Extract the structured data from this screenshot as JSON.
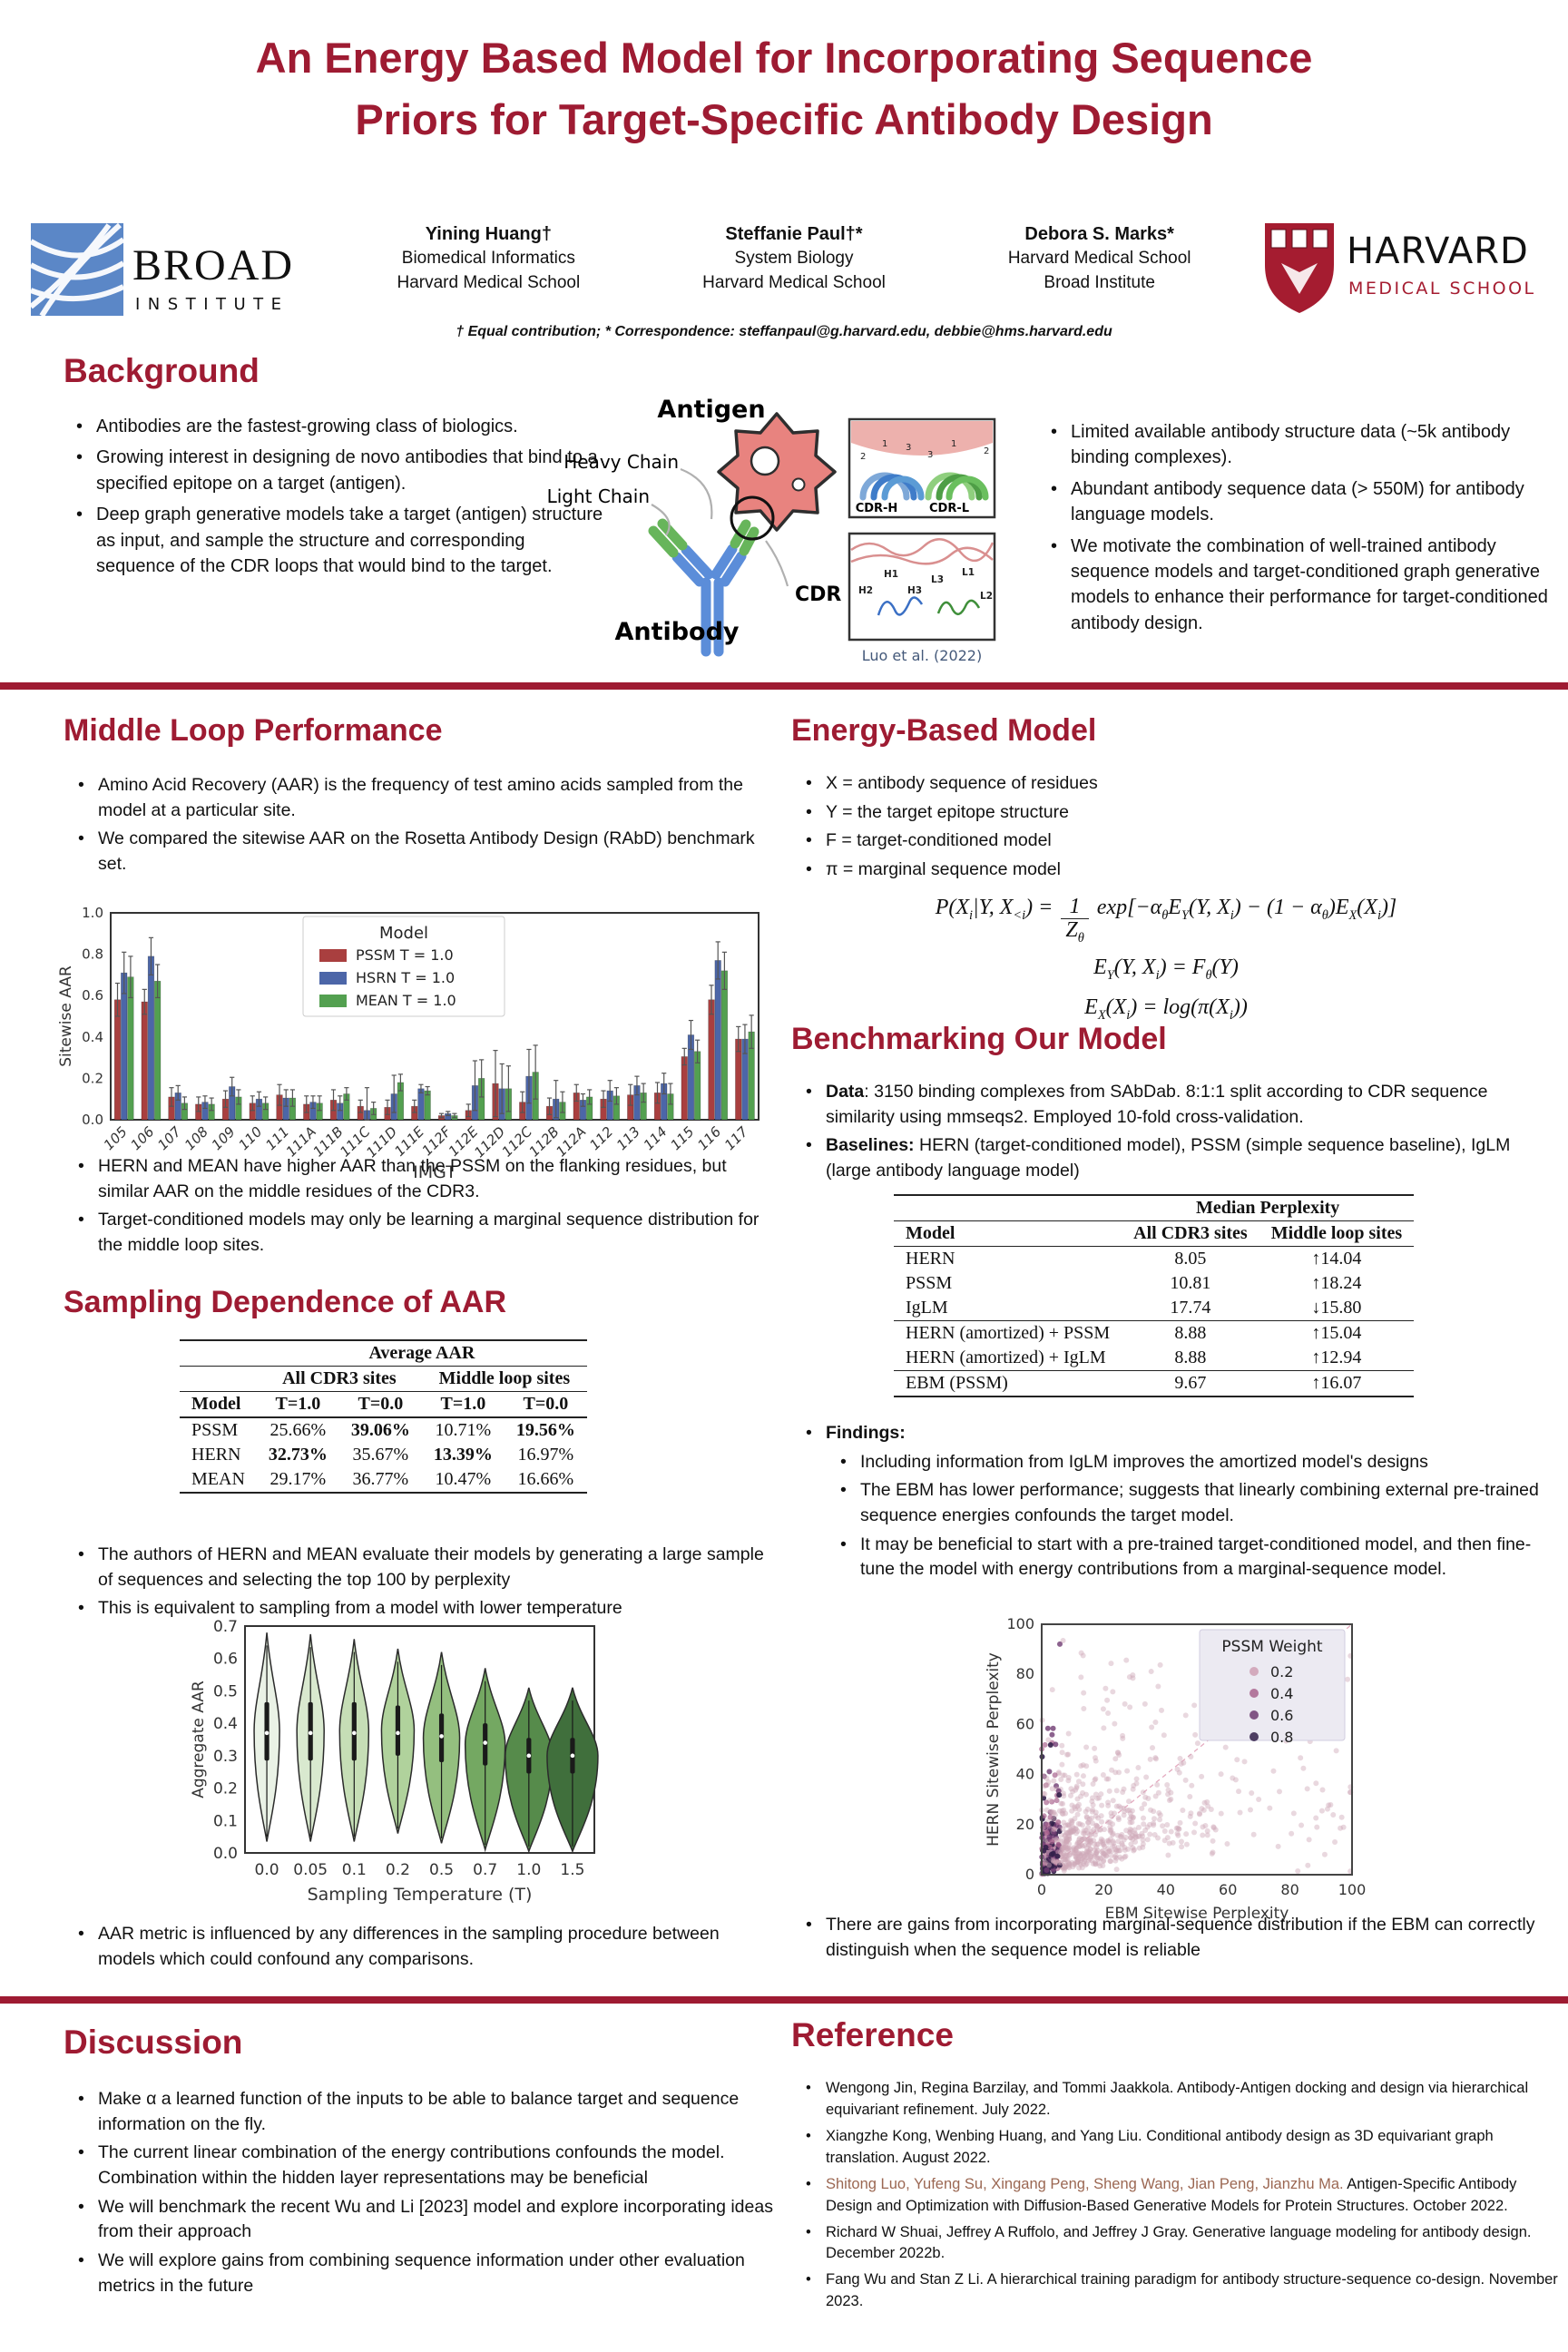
{
  "title": "An Energy Based Model for Incorporating Sequence Priors for Target-Specific Antibody Design",
  "logos": {
    "broad_line1": "BROAD",
    "broad_line2": "INSTITUTE",
    "harvard_line1": "HARVARD",
    "harvard_line2": "MEDICAL SCHOOL"
  },
  "authors": [
    {
      "name": "Yining Huang†",
      "line1": "Biomedical Informatics",
      "line2": "Harvard Medical School"
    },
    {
      "name": "Steffanie Paul†*",
      "line1": "System Biology",
      "line2": "Harvard Medical School"
    },
    {
      "name": "Debora S. Marks*",
      "line1": "Harvard Medical School",
      "line2": "Broad Institute"
    }
  ],
  "correspondence": "† Equal contribution; * Correspondence: steffanpaul@g.harvard.edu, debbie@hms.harvard.edu",
  "background": {
    "heading": "Background",
    "left_bullets": [
      "Antibodies are the fastest-growing class of biologics.",
      "Growing interest in designing de novo antibodies that bind to a specified epitope on a target (antigen).",
      "Deep graph generative models take a target (antigen) structure as input, and sample the structure and corresponding sequence of the CDR loops that would bind to the target."
    ],
    "right_bullets": [
      "Limited available antibody structure data (~5k antibody binding complexes).",
      "Abundant antibody sequence data (> 550M) for antibody language models.",
      "We motivate the combination of well-trained antibody sequence models and target-conditioned graph generative models to enhance their performance for target-conditioned antibody design."
    ],
    "figure": {
      "antigen_label": "Antigen",
      "heavy_chain_label": "Heavy Chain",
      "light_chain_label": "Light Chain",
      "cdr_label": "CDR",
      "antibody_label": "Antibody",
      "inset1_left_label": "CDR-H",
      "inset1_right_label": "CDR-L",
      "inset1_numbers": [
        "2",
        "1",
        "3",
        "3",
        "1",
        "2"
      ],
      "inset2_labels": [
        "H2",
        "H1",
        "H3",
        "L3",
        "L1",
        "L2"
      ],
      "caption": "Luo et al. (2022)"
    }
  },
  "middle_loop": {
    "heading": "Middle Loop Performance",
    "bullets": [
      "Amino Acid Recovery (AAR) is the frequency of test amino acids sampled from the model at a particular site.",
      "We compared the sitewise AAR on the Rosetta Antibody Design (RAbD) benchmark set."
    ],
    "post_bullets": [
      "HERN and MEAN have higher AAR than the PSSM on the flanking residues, but similar AAR on the middle residues of the CDR3.",
      "Target-conditioned models may only be learning a marginal sequence distribution for the middle loop sites."
    ]
  },
  "sampling": {
    "heading": "Sampling Dependence of AAR",
    "table": {
      "span_header": "Average AAR",
      "group_headers": [
        "All CDR3 sites",
        "Middle loop sites"
      ],
      "col_headers": [
        "Model",
        "T=1.0",
        "T=0.0",
        "T=1.0",
        "T=0.0"
      ],
      "rows": [
        [
          "PSSM",
          "25.66%",
          "39.06%",
          "10.71%",
          "19.56%"
        ],
        [
          "HERN",
          "32.73%",
          "35.67%",
          "13.39%",
          "16.97%"
        ],
        [
          "MEAN",
          "29.17%",
          "36.77%",
          "10.47%",
          "16.66%"
        ]
      ],
      "bold_mask": [
        [
          false,
          false,
          true,
          false,
          true
        ],
        [
          false,
          true,
          false,
          true,
          false
        ],
        [
          false,
          false,
          false,
          false,
          false
        ]
      ]
    },
    "bullets": [
      "The authors of HERN and MEAN evaluate their models by generating a large sample of sequences and selecting the top 100 by perplexity",
      "This is equivalent to sampling from a model with lower temperature"
    ],
    "post_bullets": [
      "AAR metric is influenced by any differences in the sampling procedure between models which could confound any comparisons."
    ]
  },
  "energy_model": {
    "heading": "Energy-Based Model",
    "bullets": [
      "X = antibody sequence of residues",
      "Y = the target epitope structure",
      "F = target-conditioned model",
      "π = marginal sequence model"
    ],
    "equations": [
      [
        {
          "m": "P(X"
        },
        {
          "s": "i"
        },
        {
          "m": "|Y, X"
        },
        {
          "s": "<i"
        },
        {
          "m": ") = "
        },
        {
          "frac": {
            "n": [
              {
                "m": "1"
              }
            ],
            "d": [
              {
                "m": "Z"
              },
              {
                "s": "θ"
              }
            ]
          }
        },
        {
          "m": " exp[−α"
        },
        {
          "s": "θ"
        },
        {
          "m": "E"
        },
        {
          "s": "Y"
        },
        {
          "m": "(Y, X"
        },
        {
          "s": "i"
        },
        {
          "m": ") − (1 − α"
        },
        {
          "s": "θ"
        },
        {
          "m": ")E"
        },
        {
          "s": "X"
        },
        {
          "m": "(X"
        },
        {
          "s": "i"
        },
        {
          "m": ")]"
        }
      ],
      [
        {
          "m": "E"
        },
        {
          "s": "Y"
        },
        {
          "m": "(Y, X"
        },
        {
          "s": "i"
        },
        {
          "m": ") = F"
        },
        {
          "s": "θ"
        },
        {
          "m": "(Y)"
        }
      ],
      [
        {
          "m": "E"
        },
        {
          "s": "X"
        },
        {
          "m": "(X"
        },
        {
          "s": "i"
        },
        {
          "m": ") = log(π(X"
        },
        {
          "s": "i"
        },
        {
          "m": "))"
        }
      ]
    ]
  },
  "benchmarking": {
    "heading": "Benchmarking Our Model",
    "bullets": [
      {
        "lead": "Data",
        "text": ":  3150 binding complexes from SAbDab. 8:1:1 split according to CDR sequence similarity using mmseqs2. Employed 10-fold cross-validation."
      },
      {
        "lead": "Baselines:",
        "text": " HERN (target-conditioned model), PSSM (simple sequence baseline), IgLM (large antibody language model)"
      }
    ],
    "table": {
      "span_header": "Median Perplexity",
      "col_headers": [
        "Model",
        "All CDR3 sites",
        "Middle loop sites"
      ],
      "groups": [
        [
          [
            "HERN",
            "8.05",
            "↑14.04"
          ],
          [
            "PSSM",
            "10.81",
            "↑18.24"
          ],
          [
            "IgLM",
            "17.74",
            "↓15.80"
          ]
        ],
        [
          [
            "HERN (amortized) + PSSM",
            "8.88",
            "↑15.04"
          ],
          [
            "HERN (amortized) + IgLM",
            "8.88",
            "↑12.94"
          ]
        ],
        [
          [
            "EBM (PSSM)",
            "9.67",
            "↑16.07"
          ]
        ]
      ]
    },
    "findings_label": "Findings:",
    "findings": [
      "Including information from IgLM improves the amortized model's designs",
      "The EBM has lower performance; suggests that linearly combining external pre-trained sequence energies confounds the target model.",
      "It may be beneficial to start with a pre-trained target-conditioned model, and then fine-tune the model with energy contributions from a marginal-sequence model."
    ],
    "post_bullets": [
      "There are gains from incorporating marginal-sequence distribution if the EBM can correctly distinguish when the sequence model is reliable"
    ]
  },
  "discussion": {
    "heading": "Discussion",
    "bullets": [
      "Make α a learned function of the inputs to be able to balance target and sequence information on the fly.",
      "The current linear combination of the energy contributions confounds the model. Combination within the hidden layer representations may be beneficial",
      "We will benchmark the recent Wu and Li [2023] model and explore incorporating ideas from their approach",
      "We will explore gains from combining sequence information under other evaluation metrics in the future"
    ]
  },
  "reference": {
    "heading": "Reference",
    "items": [
      {
        "lead": "Wengong Jin, Regina Barzilay, and Tommi Jaakkola.",
        "rest": " Antibody-Antigen docking and design via hierarchical equivariant refinement. July 2022.",
        "lead_color": "#111111"
      },
      {
        "lead": "Xiangzhe Kong, Wenbing Huang, and Yang Liu.",
        "rest": " Conditional antibody design as 3D equivariant graph translation. August 2022.",
        "lead_color": "#111111"
      },
      {
        "lead": "Shitong Luo, Yufeng Su, Xingang Peng, Sheng Wang, Jian Peng, Jianzhu Ma.",
        "rest": " Antigen-Specific Antibody Design and Optimization with Diffusion-Based Generative Models for Protein Structures. October 2022.",
        "lead_color": "#9b6752"
      },
      {
        "lead": "Richard W Shuai, Jeffrey A Ruffolo, and Jeffrey J Gray.",
        "rest": " Generative language modeling for antibody design. December 2022b.",
        "lead_color": "#111111"
      },
      {
        "lead": "Fang Wu and Stan Z Li.",
        "rest": " A hierarchical training paradigm for antibody structure-sequence co-design. November 2023.",
        "lead_color": "#111111"
      }
    ]
  },
  "chart_data": [
    {
      "type": "bar",
      "title": "",
      "xlabel": "IMGT",
      "ylabel": "Sitewise AAR",
      "ylim": [
        0,
        1.0
      ],
      "yticks": [
        0.0,
        0.2,
        0.4,
        0.6,
        0.8,
        1.0
      ],
      "legend_title": "Model",
      "legend_position": "upper center",
      "grid": false,
      "categories": [
        "105",
        "106",
        "107",
        "108",
        "109",
        "110",
        "111",
        "111A",
        "111B",
        "111C",
        "111D",
        "111E",
        "112F",
        "112E",
        "112D",
        "112C",
        "112B",
        "112A",
        "112",
        "113",
        "114",
        "115",
        "116",
        "117"
      ],
      "series": [
        {
          "name": "PSSM T = 1.0",
          "color": "#A93F3F",
          "values": [
            0.58,
            0.57,
            0.11,
            0.075,
            0.1,
            0.08,
            0.12,
            0.075,
            0.095,
            0.065,
            0.06,
            0.065,
            0.02,
            0.045,
            0.175,
            0.085,
            0.065,
            0.13,
            0.1,
            0.12,
            0.13,
            0.305,
            0.58,
            0.39
          ],
          "errors": [
            0.08,
            0.06,
            0.045,
            0.035,
            0.04,
            0.035,
            0.05,
            0.04,
            0.05,
            0.03,
            0.035,
            0.03,
            0.01,
            0.03,
            0.16,
            0.05,
            0.04,
            0.04,
            0.04,
            0.05,
            0.05,
            0.04,
            0.07,
            0.06
          ]
        },
        {
          "name": "HSRN T = 1.0",
          "color": "#4C66A8",
          "values": [
            0.71,
            0.79,
            0.13,
            0.085,
            0.16,
            0.1,
            0.105,
            0.085,
            0.08,
            0.045,
            0.125,
            0.15,
            0.03,
            0.165,
            0.15,
            0.21,
            0.1,
            0.095,
            0.14,
            0.165,
            0.175,
            0.41,
            0.77,
            0.39
          ],
          "errors": [
            0.1,
            0.09,
            0.035,
            0.03,
            0.045,
            0.035,
            0.04,
            0.03,
            0.035,
            0.11,
            0.09,
            0.02,
            0.01,
            0.12,
            0.12,
            0.13,
            0.09,
            0.03,
            0.05,
            0.045,
            0.05,
            0.07,
            0.09,
            0.07
          ]
        },
        {
          "name": "MEAN T = 1.0",
          "color": "#53A050",
          "values": [
            0.69,
            0.67,
            0.08,
            0.075,
            0.11,
            0.08,
            0.105,
            0.08,
            0.125,
            0.055,
            0.18,
            0.14,
            0.02,
            0.2,
            0.15,
            0.23,
            0.085,
            0.11,
            0.115,
            0.13,
            0.125,
            0.33,
            0.72,
            0.425
          ],
          "errors": [
            0.1,
            0.08,
            0.03,
            0.03,
            0.035,
            0.03,
            0.04,
            0.035,
            0.03,
            0.03,
            0.04,
            0.02,
            0.01,
            0.09,
            0.11,
            0.13,
            0.05,
            0.035,
            0.04,
            0.045,
            0.05,
            0.055,
            0.09,
            0.08
          ]
        }
      ]
    },
    {
      "type": "violin",
      "xlabel": "Sampling Temperature (T)",
      "ylabel": "Aggregate AAR",
      "ylim": [
        0,
        0.7
      ],
      "yticks": [
        0.0,
        0.1,
        0.2,
        0.3,
        0.4,
        0.5,
        0.6,
        0.7
      ],
      "categories": [
        "0.0",
        "0.05",
        "0.1",
        "0.2",
        "0.5",
        "0.7",
        "1.0",
        "1.5"
      ],
      "colors": [
        "#eaf2e6",
        "#d9e9cf",
        "#c6deb6",
        "#b0d29c",
        "#94bf7f",
        "#74a862",
        "#568b4b",
        "#406f3c"
      ],
      "tops": [
        0.68,
        0.675,
        0.66,
        0.63,
        0.62,
        0.57,
        0.51,
        0.51
      ],
      "bottoms": [
        0.035,
        0.035,
        0.035,
        0.06,
        0.03,
        0.01,
        0.005,
        0.005
      ],
      "medians": [
        0.37,
        0.37,
        0.37,
        0.37,
        0.36,
        0.34,
        0.3,
        0.3
      ],
      "q1": [
        0.285,
        0.285,
        0.285,
        0.3,
        0.28,
        0.27,
        0.245,
        0.245
      ],
      "q3": [
        0.465,
        0.465,
        0.465,
        0.455,
        0.43,
        0.4,
        0.355,
        0.355
      ],
      "half_widths": [
        14,
        15,
        16,
        18,
        20,
        22,
        26,
        28
      ]
    },
    {
      "type": "scatter",
      "xlabel": "EBM Sitewise Perplexity",
      "ylabel": "HERN Sitewise Perplexity",
      "xlim": [
        0,
        100
      ],
      "ylim": [
        0,
        100
      ],
      "xticks": [
        0,
        20,
        40,
        60,
        80,
        100
      ],
      "yticks": [
        0,
        20,
        40,
        60,
        80,
        100
      ],
      "legend_title": "PSSM Weight",
      "legend": [
        {
          "label": "0.2",
          "color": "#cf9fb4"
        },
        {
          "label": "0.4",
          "color": "#a9648e"
        },
        {
          "label": "0.6",
          "color": "#6f3b72"
        },
        {
          "label": "0.8",
          "color": "#33204a"
        }
      ],
      "diagonal_reference_line": true,
      "base_point_color": "#cfa9b8",
      "n_points": 900,
      "seed": 7
    }
  ]
}
